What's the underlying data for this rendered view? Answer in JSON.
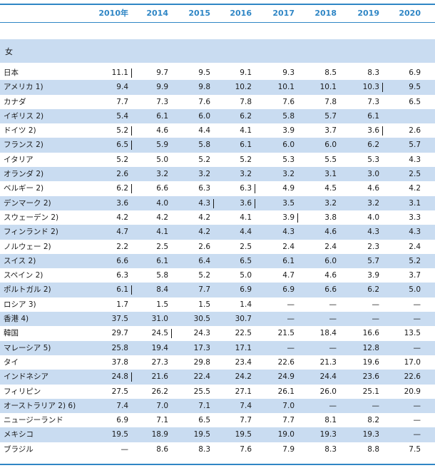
{
  "table": {
    "headers": [
      "2010年",
      "2014",
      "2015",
      "2016",
      "2017",
      "2018",
      "2019",
      "2020"
    ],
    "section_label": "女",
    "rows": [
      {
        "name": "日本",
        "values": [
          "11.1",
          "9.7",
          "9.5",
          "9.1",
          "9.3",
          "8.5",
          "8.3",
          "6.9"
        ],
        "breaks": [
          0
        ]
      },
      {
        "name": "アメリカ 1)",
        "values": [
          "9.4",
          "9.9",
          "9.8",
          "10.2",
          "10.1",
          "10.1",
          "10.3",
          "9.5"
        ],
        "breaks": [
          6
        ]
      },
      {
        "name": "カナダ",
        "values": [
          "7.7",
          "7.3",
          "7.6",
          "7.8",
          "7.6",
          "7.8",
          "7.3",
          "6.5"
        ],
        "breaks": []
      },
      {
        "name": "イギリス 2)",
        "values": [
          "5.4",
          "6.1",
          "6.0",
          "6.2",
          "5.8",
          "5.7",
          "6.1",
          ""
        ],
        "breaks": []
      },
      {
        "name": "ドイツ 2)",
        "values": [
          "5.2",
          "4.6",
          "4.4",
          "4.1",
          "3.9",
          "3.7",
          "3.6",
          "2.6"
        ],
        "breaks": [
          0,
          6
        ]
      },
      {
        "name": "フランス 2)",
        "values": [
          "6.5",
          "5.9",
          "5.8",
          "6.1",
          "6.0",
          "6.0",
          "6.2",
          "5.7"
        ],
        "breaks": [
          0
        ]
      },
      {
        "name": "イタリア",
        "values": [
          "5.2",
          "5.0",
          "5.2",
          "5.2",
          "5.3",
          "5.5",
          "5.3",
          "4.3"
        ],
        "breaks": []
      },
      {
        "name": "オランダ 2)",
        "values": [
          "2.6",
          "3.2",
          "3.2",
          "3.2",
          "3.2",
          "3.1",
          "3.0",
          "2.5"
        ],
        "breaks": []
      },
      {
        "name": "ベルギー 2)",
        "values": [
          "6.2",
          "6.6",
          "6.3",
          "6.3",
          "4.9",
          "4.5",
          "4.6",
          "4.2"
        ],
        "breaks": [
          0,
          3
        ]
      },
      {
        "name": "デンマーク 2)",
        "values": [
          "3.6",
          "4.0",
          "4.3",
          "3.6",
          "3.5",
          "3.2",
          "3.2",
          "3.1"
        ],
        "breaks": [
          2,
          3
        ]
      },
      {
        "name": "スウェーデン 2)",
        "values": [
          "4.2",
          "4.2",
          "4.2",
          "4.1",
          "3.9",
          "3.8",
          "4.0",
          "3.3"
        ],
        "breaks": [
          4
        ]
      },
      {
        "name": "フィンランド 2)",
        "values": [
          "4.7",
          "4.1",
          "4.2",
          "4.4",
          "4.3",
          "4.6",
          "4.3",
          "4.3"
        ],
        "breaks": []
      },
      {
        "name": "ノルウェー 2)",
        "values": [
          "2.2",
          "2.5",
          "2.6",
          "2.5",
          "2.4",
          "2.4",
          "2.3",
          "2.4"
        ],
        "breaks": []
      },
      {
        "name": "スイス 2)",
        "values": [
          "6.6",
          "6.1",
          "6.4",
          "6.5",
          "6.1",
          "6.0",
          "5.7",
          "5.2"
        ],
        "breaks": []
      },
      {
        "name": "スペイン 2)",
        "values": [
          "6.3",
          "5.8",
          "5.2",
          "5.0",
          "4.7",
          "4.6",
          "3.9",
          "3.7"
        ],
        "breaks": []
      },
      {
        "name": "ポルトガル 2)",
        "values": [
          "6.1",
          "8.4",
          "7.7",
          "6.9",
          "6.9",
          "6.6",
          "6.2",
          "5.0"
        ],
        "breaks": [
          0
        ]
      },
      {
        "name": "ロシア 3)",
        "values": [
          "1.7",
          "1.5",
          "1.5",
          "1.4",
          "—",
          "—",
          "—",
          "—"
        ],
        "breaks": []
      },
      {
        "name": "香港 4)",
        "values": [
          "37.5",
          "31.0",
          "30.5",
          "30.7",
          "—",
          "—",
          "—",
          "—"
        ],
        "breaks": []
      },
      {
        "name": "韓国",
        "values": [
          "29.7",
          "24.5",
          "24.3",
          "22.5",
          "21.5",
          "18.4",
          "16.6",
          "13.5"
        ],
        "breaks": [
          1
        ]
      },
      {
        "name": "マレーシア 5)",
        "values": [
          "25.8",
          "19.4",
          "17.3",
          "17.1",
          "—",
          "—",
          "12.8",
          "—"
        ],
        "breaks": []
      },
      {
        "name": "タイ",
        "values": [
          "37.8",
          "27.3",
          "29.8",
          "23.4",
          "22.6",
          "21.3",
          "19.6",
          "17.0"
        ],
        "breaks": []
      },
      {
        "name": "インドネシア",
        "values": [
          "24.8",
          "21.6",
          "22.4",
          "24.2",
          "24.9",
          "24.4",
          "23.6",
          "22.6"
        ],
        "breaks": [
          0
        ]
      },
      {
        "name": "フィリピン",
        "values": [
          "27.5",
          "26.2",
          "25.5",
          "27.1",
          "26.1",
          "26.0",
          "25.1",
          "20.9"
        ],
        "breaks": []
      },
      {
        "name": "オーストラリア 2) 6)",
        "values": [
          "7.4",
          "7.0",
          "7.1",
          "7.4",
          "7.0",
          "—",
          "—",
          "—"
        ],
        "breaks": []
      },
      {
        "name": "ニュージーランド",
        "values": [
          "6.9",
          "7.1",
          "6.5",
          "7.7",
          "7.7",
          "8.1",
          "8.2",
          "—"
        ],
        "breaks": []
      },
      {
        "name": "メキシコ",
        "values": [
          "19.5",
          "18.9",
          "19.5",
          "19.5",
          "19.0",
          "19.3",
          "19.3",
          "—"
        ],
        "breaks": []
      },
      {
        "name": "ブラジル",
        "values": [
          "—",
          "8.6",
          "8.3",
          "7.6",
          "7.9",
          "8.3",
          "8.8",
          "7.5"
        ],
        "breaks": []
      }
    ]
  }
}
